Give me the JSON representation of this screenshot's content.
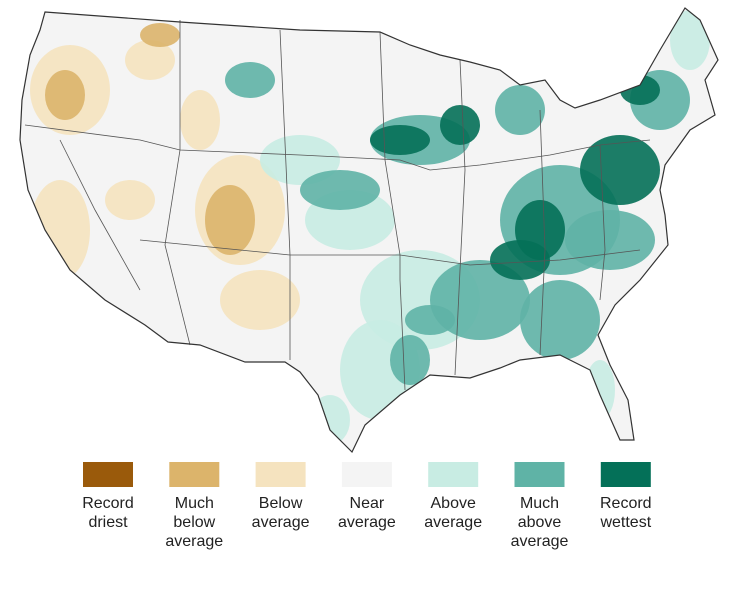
{
  "legend": {
    "items": [
      {
        "label_lines": [
          "Record",
          "driest"
        ],
        "color": "#9a5a0b"
      },
      {
        "label_lines": [
          "Much",
          "below",
          "average"
        ],
        "color": "#dcb46b"
      },
      {
        "label_lines": [
          "Below",
          "average"
        ],
        "color": "#f5e3bf"
      },
      {
        "label_lines": [
          "Near",
          "average"
        ],
        "color": "#f4f4f4"
      },
      {
        "label_lines": [
          "Above",
          "average"
        ],
        "color": "#c8ece3"
      },
      {
        "label_lines": [
          "Much",
          "above",
          "average"
        ],
        "color": "#5fb3a6"
      },
      {
        "label_lines": [
          "Record",
          "wettest"
        ],
        "color": "#047058"
      }
    ]
  }
}
